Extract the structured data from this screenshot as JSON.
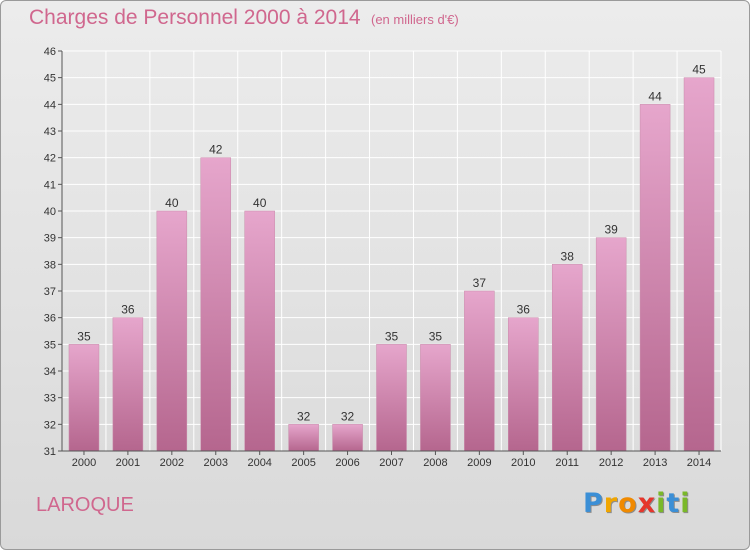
{
  "title": "Charges de Personnel 2000 à 2014",
  "subtitle": "(en milliers d'€)",
  "commune": "LAROQUE",
  "logo_text": "Proxiti",
  "colors": {
    "text_accent": "#d0678e",
    "bar_light": "#e6a6cc",
    "bar_dark": "#b5668e",
    "grid": "#ffffff"
  },
  "chart_data": {
    "type": "bar",
    "title": "Charges de Personnel 2000 à 2014",
    "subtitle": "(en milliers d'€)",
    "categories": [
      "2000",
      "2001",
      "2002",
      "2003",
      "2004",
      "2005",
      "2006",
      "2007",
      "2008",
      "2009",
      "2010",
      "2011",
      "2012",
      "2013",
      "2014"
    ],
    "values": [
      35,
      36,
      40,
      42,
      40,
      32,
      32,
      35,
      35,
      37,
      36,
      38,
      39,
      44,
      45
    ],
    "ylim": [
      31,
      46
    ],
    "yticks": [
      31,
      32,
      33,
      34,
      35,
      36,
      37,
      38,
      39,
      40,
      41,
      42,
      43,
      44,
      45,
      46
    ],
    "grid": true,
    "xlabel": "",
    "ylabel": ""
  }
}
